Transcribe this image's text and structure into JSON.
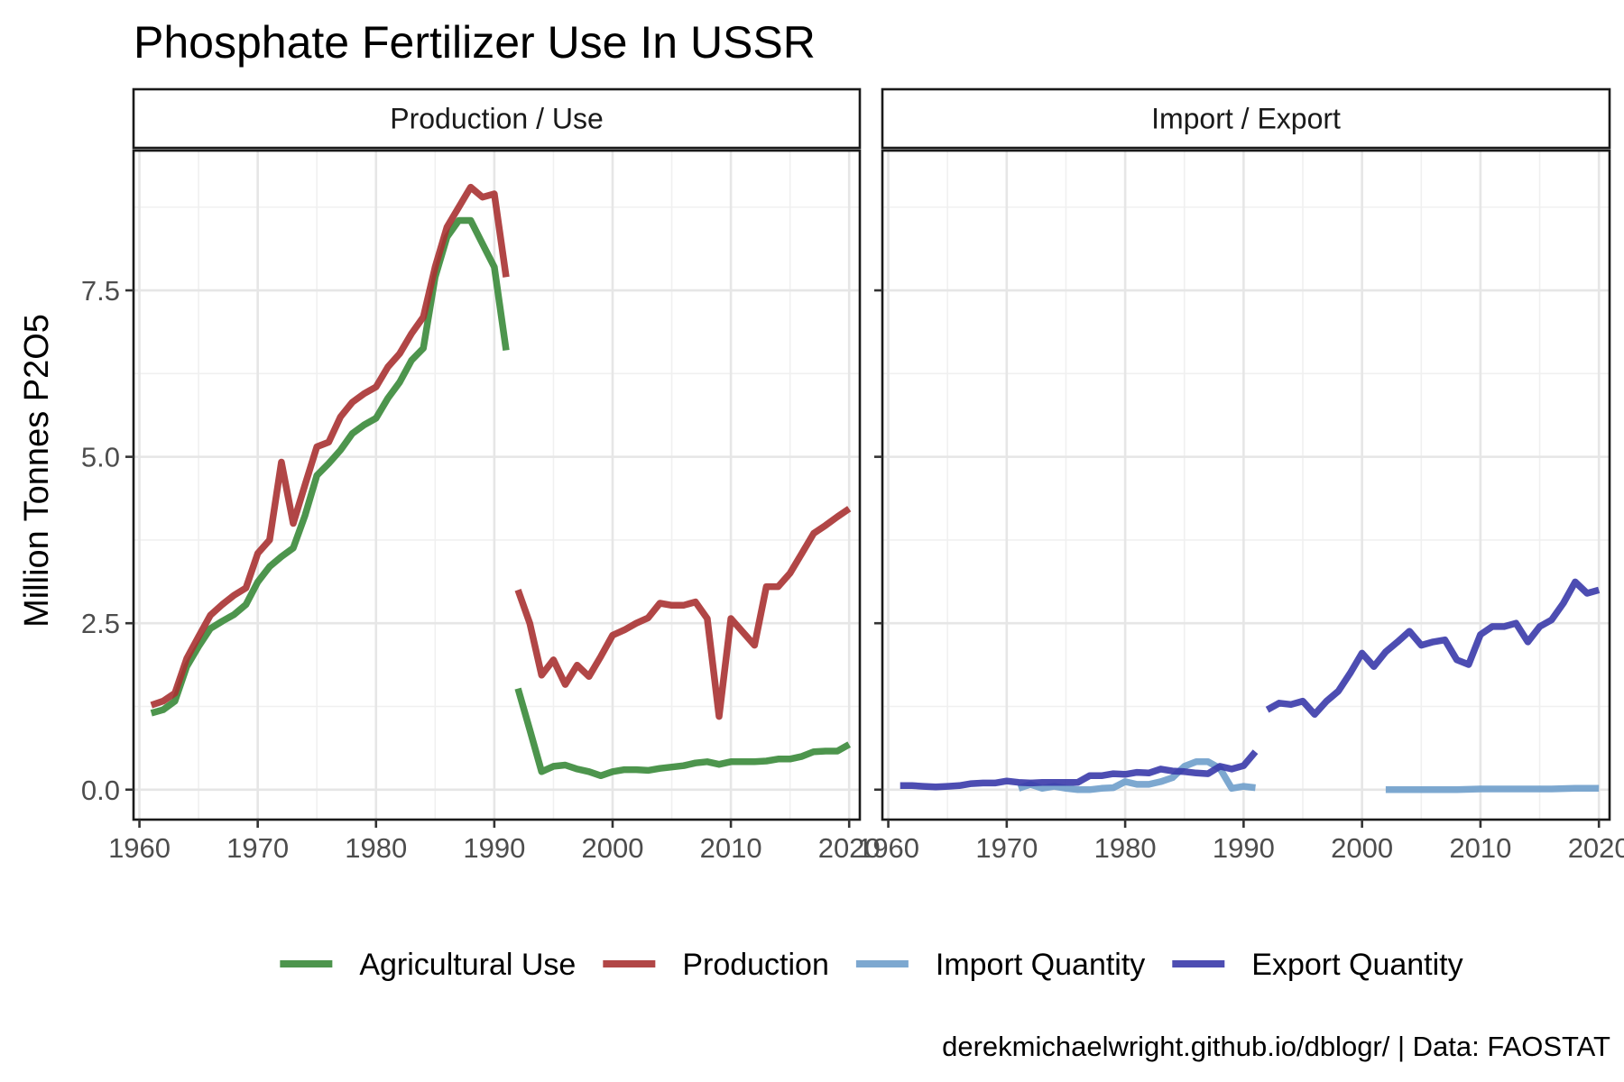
{
  "chart_data": {
    "type": "line",
    "title": "Phosphate Fertilizer Use In USSR",
    "ylabel": "Million Tonnes P2O5",
    "xlabel": "",
    "caption": "derekmichaelwright.github.io/dblogr/ | Data: FAOSTAT",
    "xlim": [
      1959.5,
      2020.9
    ],
    "ylim": [
      -0.45,
      9.6
    ],
    "x_ticks": [
      1960,
      1970,
      1980,
      1990,
      2000,
      2010,
      2020
    ],
    "y_ticks": [
      0,
      2.5,
      5,
      7.5
    ],
    "y_tick_labels": [
      "0.0",
      "2.5",
      "5.0",
      "7.5"
    ],
    "grid": true,
    "legend_position": "bottom",
    "legend": [
      {
        "name": "Agricultural Use",
        "color": "#3a8a3a"
      },
      {
        "name": "Production",
        "color": "#a83232"
      },
      {
        "name": "Import Quantity",
        "color": "#6f9fcb"
      },
      {
        "name": "Export Quantity",
        "color": "#3a3aaa"
      }
    ],
    "panels": [
      {
        "strip": "Production / Use",
        "series": [
          {
            "name": "Agricultural Use",
            "color": "#3a8a3a",
            "segments": [
              [
                [
                  1961,
                  1.15
                ],
                [
                  1962,
                  1.2
                ],
                [
                  1963,
                  1.33
                ],
                [
                  1964,
                  1.85
                ],
                [
                  1965,
                  2.15
                ],
                [
                  1966,
                  2.42
                ],
                [
                  1967,
                  2.53
                ],
                [
                  1968,
                  2.63
                ],
                [
                  1969,
                  2.78
                ],
                [
                  1970,
                  3.12
                ],
                [
                  1971,
                  3.35
                ],
                [
                  1972,
                  3.5
                ],
                [
                  1973,
                  3.63
                ],
                [
                  1974,
                  4.12
                ],
                [
                  1975,
                  4.72
                ],
                [
                  1976,
                  4.9
                ],
                [
                  1977,
                  5.1
                ],
                [
                  1978,
                  5.35
                ],
                [
                  1979,
                  5.48
                ],
                [
                  1980,
                  5.58
                ],
                [
                  1981,
                  5.88
                ],
                [
                  1982,
                  6.12
                ],
                [
                  1983,
                  6.45
                ],
                [
                  1984,
                  6.63
                ],
                [
                  1985,
                  7.7
                ],
                [
                  1986,
                  8.3
                ],
                [
                  1987,
                  8.55
                ],
                [
                  1988,
                  8.55
                ],
                [
                  1989,
                  8.2
                ],
                [
                  1990,
                  7.85
                ],
                [
                  1991,
                  6.6
                ]
              ],
              [
                [
                  1992,
                  1.52
                ],
                [
                  1993,
                  0.9
                ],
                [
                  1994,
                  0.27
                ],
                [
                  1995,
                  0.35
                ],
                [
                  1996,
                  0.37
                ],
                [
                  1997,
                  0.31
                ],
                [
                  1998,
                  0.27
                ],
                [
                  1999,
                  0.21
                ],
                [
                  2000,
                  0.27
                ],
                [
                  2001,
                  0.3
                ],
                [
                  2002,
                  0.3
                ],
                [
                  2003,
                  0.29
                ],
                [
                  2004,
                  0.32
                ],
                [
                  2005,
                  0.34
                ],
                [
                  2006,
                  0.36
                ],
                [
                  2007,
                  0.4
                ],
                [
                  2008,
                  0.42
                ],
                [
                  2009,
                  0.38
                ],
                [
                  2010,
                  0.42
                ],
                [
                  2011,
                  0.42
                ],
                [
                  2012,
                  0.42
                ],
                [
                  2013,
                  0.43
                ],
                [
                  2014,
                  0.46
                ],
                [
                  2015,
                  0.46
                ],
                [
                  2016,
                  0.5
                ],
                [
                  2017,
                  0.57
                ],
                [
                  2018,
                  0.58
                ],
                [
                  2019,
                  0.58
                ],
                [
                  2020,
                  0.68
                ]
              ]
            ]
          },
          {
            "name": "Production",
            "color": "#a83232",
            "segments": [
              [
                [
                  1961,
                  1.27
                ],
                [
                  1962,
                  1.33
                ],
                [
                  1963,
                  1.45
                ],
                [
                  1964,
                  1.97
                ],
                [
                  1965,
                  2.3
                ],
                [
                  1966,
                  2.62
                ],
                [
                  1967,
                  2.78
                ],
                [
                  1968,
                  2.92
                ],
                [
                  1969,
                  3.03
                ],
                [
                  1970,
                  3.55
                ],
                [
                  1971,
                  3.75
                ],
                [
                  1972,
                  4.92
                ],
                [
                  1973,
                  4.0
                ],
                [
                  1974,
                  4.58
                ],
                [
                  1975,
                  5.15
                ],
                [
                  1976,
                  5.22
                ],
                [
                  1977,
                  5.6
                ],
                [
                  1978,
                  5.82
                ],
                [
                  1979,
                  5.95
                ],
                [
                  1980,
                  6.05
                ],
                [
                  1981,
                  6.35
                ],
                [
                  1982,
                  6.55
                ],
                [
                  1983,
                  6.85
                ],
                [
                  1984,
                  7.1
                ],
                [
                  1985,
                  7.85
                ],
                [
                  1986,
                  8.45
                ],
                [
                  1987,
                  8.75
                ],
                [
                  1988,
                  9.05
                ],
                [
                  1989,
                  8.9
                ],
                [
                  1990,
                  8.95
                ],
                [
                  1991,
                  7.7
                ]
              ],
              [
                [
                  1992,
                  3.0
                ],
                [
                  1993,
                  2.5
                ],
                [
                  1994,
                  1.72
                ],
                [
                  1995,
                  1.95
                ],
                [
                  1996,
                  1.58
                ],
                [
                  1997,
                  1.87
                ],
                [
                  1998,
                  1.7
                ],
                [
                  1999,
                  2.0
                ],
                [
                  2000,
                  2.32
                ],
                [
                  2001,
                  2.4
                ],
                [
                  2002,
                  2.5
                ],
                [
                  2003,
                  2.58
                ],
                [
                  2004,
                  2.8
                ],
                [
                  2005,
                  2.77
                ],
                [
                  2006,
                  2.77
                ],
                [
                  2007,
                  2.82
                ],
                [
                  2008,
                  2.57
                ],
                [
                  2009,
                  1.1
                ],
                [
                  2010,
                  2.57
                ],
                [
                  2011,
                  2.37
                ],
                [
                  2012,
                  2.17
                ],
                [
                  2013,
                  3.05
                ],
                [
                  2014,
                  3.05
                ],
                [
                  2015,
                  3.25
                ],
                [
                  2016,
                  3.55
                ],
                [
                  2017,
                  3.85
                ],
                [
                  2018,
                  3.97
                ],
                [
                  2019,
                  4.1
                ],
                [
                  2020,
                  4.22
                ]
              ]
            ]
          }
        ]
      },
      {
        "strip": "Import / Export",
        "series": [
          {
            "name": "Import Quantity",
            "color": "#6f9fcb",
            "segments": [
              [
                [
                  1971,
                  0.02
                ],
                [
                  1972,
                  0.08
                ],
                [
                  1973,
                  0.02
                ],
                [
                  1974,
                  0.05
                ],
                [
                  1975,
                  0.02
                ],
                [
                  1976,
                  0.0
                ],
                [
                  1977,
                  0.0
                ],
                [
                  1978,
                  0.02
                ],
                [
                  1979,
                  0.03
                ],
                [
                  1980,
                  0.12
                ],
                [
                  1981,
                  0.08
                ],
                [
                  1982,
                  0.08
                ],
                [
                  1983,
                  0.12
                ],
                [
                  1984,
                  0.18
                ],
                [
                  1985,
                  0.35
                ],
                [
                  1986,
                  0.42
                ],
                [
                  1987,
                  0.42
                ],
                [
                  1988,
                  0.32
                ],
                [
                  1989,
                  0.02
                ],
                [
                  1990,
                  0.05
                ],
                [
                  1991,
                  0.03
                ]
              ],
              [
                [
                  2002,
                  0.0
                ],
                [
                  2004,
                  0.0
                ],
                [
                  2006,
                  0.0
                ],
                [
                  2008,
                  0.0
                ],
                [
                  2010,
                  0.01
                ],
                [
                  2012,
                  0.01
                ],
                [
                  2014,
                  0.01
                ],
                [
                  2016,
                  0.01
                ],
                [
                  2018,
                  0.02
                ],
                [
                  2020,
                  0.02
                ]
              ]
            ]
          },
          {
            "name": "Export Quantity",
            "color": "#3a3aaa",
            "segments": [
              [
                [
                  1961,
                  0.06
                ],
                [
                  1962,
                  0.06
                ],
                [
                  1963,
                  0.05
                ],
                [
                  1964,
                  0.04
                ],
                [
                  1965,
                  0.05
                ],
                [
                  1966,
                  0.06
                ],
                [
                  1967,
                  0.09
                ],
                [
                  1968,
                  0.1
                ],
                [
                  1969,
                  0.1
                ],
                [
                  1970,
                  0.13
                ],
                [
                  1971,
                  0.11
                ],
                [
                  1972,
                  0.1
                ],
                [
                  1973,
                  0.11
                ],
                [
                  1974,
                  0.11
                ],
                [
                  1975,
                  0.11
                ],
                [
                  1976,
                  0.11
                ],
                [
                  1977,
                  0.21
                ],
                [
                  1978,
                  0.21
                ],
                [
                  1979,
                  0.24
                ],
                [
                  1980,
                  0.23
                ],
                [
                  1981,
                  0.26
                ],
                [
                  1982,
                  0.25
                ],
                [
                  1983,
                  0.31
                ],
                [
                  1984,
                  0.28
                ],
                [
                  1985,
                  0.27
                ],
                [
                  1986,
                  0.25
                ],
                [
                  1987,
                  0.24
                ],
                [
                  1988,
                  0.35
                ],
                [
                  1989,
                  0.31
                ],
                [
                  1990,
                  0.36
                ],
                [
                  1991,
                  0.57
                ]
              ],
              [
                [
                  1992,
                  1.2
                ],
                [
                  1993,
                  1.3
                ],
                [
                  1994,
                  1.28
                ],
                [
                  1995,
                  1.33
                ],
                [
                  1996,
                  1.13
                ],
                [
                  1997,
                  1.33
                ],
                [
                  1998,
                  1.48
                ],
                [
                  1999,
                  1.75
                ],
                [
                  2000,
                  2.05
                ],
                [
                  2001,
                  1.85
                ],
                [
                  2002,
                  2.07
                ],
                [
                  2003,
                  2.22
                ],
                [
                  2004,
                  2.38
                ],
                [
                  2005,
                  2.17
                ],
                [
                  2006,
                  2.22
                ],
                [
                  2007,
                  2.25
                ],
                [
                  2008,
                  1.95
                ],
                [
                  2009,
                  1.88
                ],
                [
                  2010,
                  2.33
                ],
                [
                  2011,
                  2.45
                ],
                [
                  2012,
                  2.45
                ],
                [
                  2013,
                  2.5
                ],
                [
                  2014,
                  2.22
                ],
                [
                  2015,
                  2.45
                ],
                [
                  2016,
                  2.55
                ],
                [
                  2017,
                  2.8
                ],
                [
                  2018,
                  3.12
                ],
                [
                  2019,
                  2.95
                ],
                [
                  2020,
                  3.0
                ]
              ]
            ]
          }
        ]
      }
    ]
  }
}
